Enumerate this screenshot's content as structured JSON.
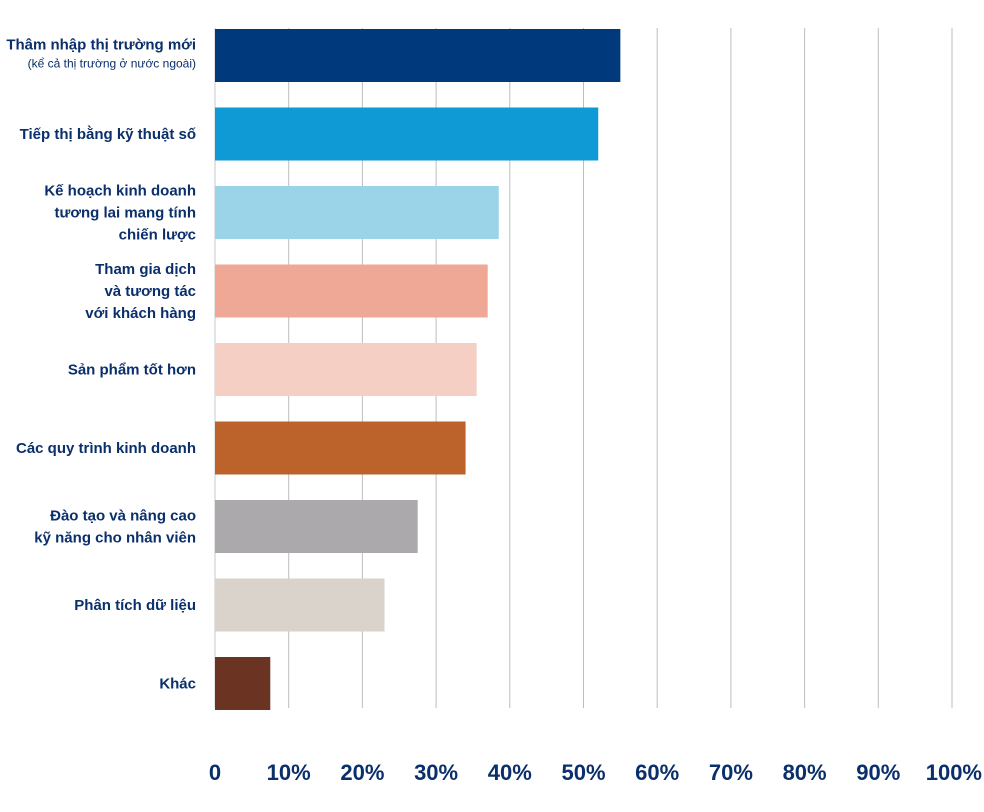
{
  "chart_data": {
    "type": "bar",
    "orientation": "horizontal",
    "categories": [
      [
        "Thâm nhập thị trường mới",
        "(kể cả thị trường ở nước ngoài)"
      ],
      [
        "Tiếp thị bằng kỹ thuật số"
      ],
      [
        "Kế hoạch kinh doanh",
        "tương lai mang tính",
        "chiến lược"
      ],
      [
        "Tham gia dịch",
        "và tương tác",
        "với khách hàng"
      ],
      [
        "Sản phẩm tốt hơn"
      ],
      [
        "Các quy trình kinh doanh"
      ],
      [
        "Đào tạo và nâng cao",
        "kỹ năng cho nhân viên"
      ],
      [
        "Phân tích dữ liệu"
      ],
      [
        "Khác"
      ]
    ],
    "values": [
      55,
      52,
      38.5,
      37,
      35.5,
      34,
      27.5,
      23,
      7.5
    ],
    "colors": [
      "#003a7d",
      "#0f9ad6",
      "#9bd3e8",
      "#efa796",
      "#f5cfc4",
      "#bb632b",
      "#aba9ab",
      "#d9d3cb",
      "#6b3422"
    ],
    "xlim": [
      0,
      100
    ],
    "xticks": [
      "0",
      "10%",
      "20%",
      "30%",
      "40%",
      "50%",
      "60%",
      "70%",
      "80%",
      "90%",
      "100%"
    ],
    "grid": true,
    "title": "",
    "xlabel": "",
    "ylabel": ""
  }
}
